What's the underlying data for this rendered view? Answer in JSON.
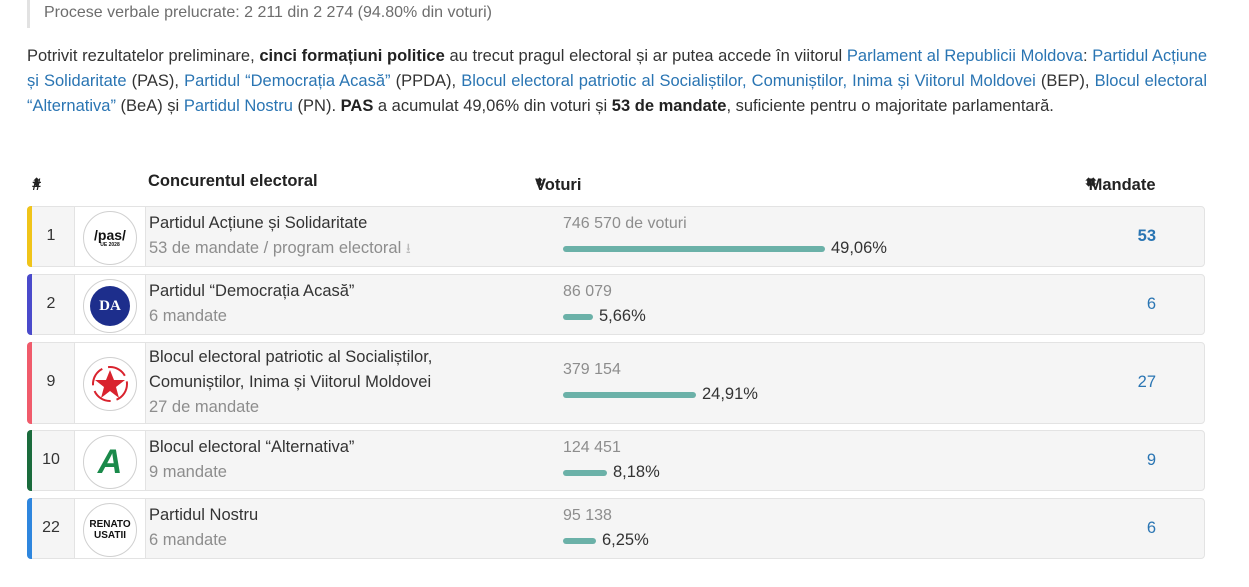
{
  "note": "Procese verbale prelucrate: 2 211 din 2 274 (94.80% din voturi)",
  "intro": {
    "t1": "Potrivit rezultatelor preliminare, ",
    "b1": "cinci formațiuni politice",
    "t2": " au trecut pragul electoral și ar putea accede în viitorul ",
    "l_parl": "Parlament al Republicii Moldova",
    "t3": ": ",
    "l_pas": "Partidul Acțiune și Solidaritate",
    "t4": " (PAS), ",
    "l_ppda": "Partidul “Democrația Acasă”",
    "t5": " (PPDA), ",
    "l_bep": "Blocul electoral patriotic al Socialiștilor, Comuniștilor, Inima și Viitorul Moldovei",
    "t6": " (BEP), ",
    "l_bea": "Blocul electoral “Alternativa”",
    "t7": " (BeA) și ",
    "l_pn": "Partidul Nostru",
    "t8": " (PN). ",
    "b2": "PAS",
    "t9": " a acumulat 49,06% din voturi și ",
    "b3": "53 de mandate",
    "t10": ", suficiente pentru o majoritate parlamentară."
  },
  "table": {
    "headers": {
      "num": "#",
      "name": "Concurentul electoral",
      "votes": "Voturi",
      "seats": "Mandate"
    },
    "sort_icon": "⬍",
    "rows": [
      {
        "num": "1",
        "name": "Partidul Acțiune și Solidaritate",
        "sub": "53 de mandate / program electoral",
        "votes": "746 570 de voturi",
        "pct": "49,06%",
        "pct_value": 49.06,
        "seats": "53",
        "color": "#f0c419",
        "logo_text": "/pas/",
        "logo_sub": "UE 2028"
      },
      {
        "num": "2",
        "name": "Partidul “Democrația Acasă”",
        "sub": "6 mandate",
        "votes": "86 079",
        "pct": "5,66%",
        "pct_value": 5.66,
        "seats": "6",
        "color": "#4a4acb",
        "logo_text": "DA"
      },
      {
        "num": "9",
        "name": "Blocul electoral patriotic al Socialiștilor,",
        "name2": "Comuniștilor, Inima și Viitorul Moldovei",
        "sub": "27 de mandate",
        "votes": "379 154",
        "pct": "24,91%",
        "pct_value": 24.91,
        "seats": "27",
        "color": "#f05b6b",
        "logo_text": ""
      },
      {
        "num": "10",
        "name": "Blocul electoral “Alternativa”",
        "sub": "9 mandate",
        "votes": "124 451",
        "pct": "8,18%",
        "pct_value": 8.18,
        "seats": "9",
        "color": "#1a6b3c",
        "logo_text": "A"
      },
      {
        "num": "22",
        "name": "Partidul Nostru",
        "sub": "6 mandate",
        "votes": "95 138",
        "pct": "6,25%",
        "pct_value": 6.25,
        "seats": "6",
        "color": "#2e86de",
        "logo_text": "RENATO",
        "logo_sub": "USATII"
      }
    ]
  },
  "colors": {
    "link": "#2a75b3",
    "bar": "#6bb1a8"
  }
}
